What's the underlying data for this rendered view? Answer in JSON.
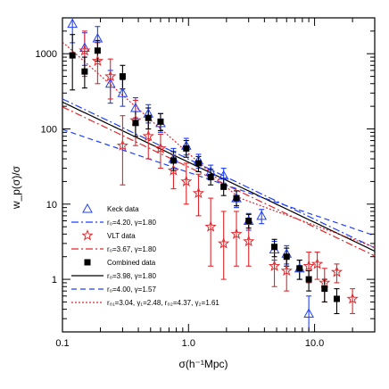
{
  "chart_data": {
    "type": "scatter",
    "title": "",
    "xlabel": "σ(h⁻¹Mpc)",
    "ylabel": "w_p(σ)/σ",
    "xscale": "log",
    "yscale": "log",
    "xlim": [
      0.1,
      30
    ],
    "ylim": [
      0.2,
      3000
    ],
    "xtick_labels": [
      "0.1",
      "1.0",
      "10.0"
    ],
    "ytick_labels": [
      "1",
      "10",
      "100",
      "1000"
    ],
    "legend_position": "bottom-left",
    "grid": false,
    "series": [
      {
        "name": "Keck data",
        "marker": "triangle-open",
        "color": "#1f3fff",
        "points": [
          {
            "x": 0.12,
            "y": 2500,
            "lo": 1400,
            "hi": 3500
          },
          {
            "x": 0.15,
            "y": 1200,
            "lo": 700,
            "hi": 1900
          },
          {
            "x": 0.19,
            "y": 1600,
            "lo": 1100,
            "hi": 2300
          },
          {
            "x": 0.24,
            "y": 400,
            "lo": 220,
            "hi": 600
          },
          {
            "x": 0.3,
            "y": 300,
            "lo": 200,
            "hi": 450
          },
          {
            "x": 0.38,
            "y": 190,
            "lo": 140,
            "hi": 260
          },
          {
            "x": 0.48,
            "y": 160,
            "lo": 120,
            "hi": 210
          },
          {
            "x": 0.6,
            "y": 120,
            "lo": 90,
            "hi": 160
          },
          {
            "x": 0.76,
            "y": 40,
            "lo": 30,
            "hi": 55
          },
          {
            "x": 0.96,
            "y": 60,
            "lo": 45,
            "hi": 75
          },
          {
            "x": 1.2,
            "y": 38,
            "lo": 30,
            "hi": 46
          },
          {
            "x": 1.5,
            "y": 27,
            "lo": 21,
            "hi": 33
          },
          {
            "x": 1.9,
            "y": 24,
            "lo": 19,
            "hi": 30
          },
          {
            "x": 2.4,
            "y": 12,
            "lo": 9,
            "hi": 15
          },
          {
            "x": 3.0,
            "y": 6.0,
            "lo": 4.5,
            "hi": 7.5
          },
          {
            "x": 3.8,
            "y": 7.0,
            "lo": 5.5,
            "hi": 8.5
          },
          {
            "x": 4.8,
            "y": 2.5,
            "lo": 1.8,
            "hi": 3.2
          },
          {
            "x": 6.0,
            "y": 2.2,
            "lo": 1.6,
            "hi": 2.8
          },
          {
            "x": 7.6,
            "y": 1.4,
            "lo": 1.0,
            "hi": 1.8
          },
          {
            "x": 9.0,
            "y": 0.35,
            "lo": 0.2,
            "hi": 0.6
          }
        ]
      },
      {
        "name": "VLT data",
        "marker": "star-open",
        "color": "#e0282d",
        "points": [
          {
            "x": 0.15,
            "y": 1100,
            "lo": 500,
            "hi": 2000
          },
          {
            "x": 0.19,
            "y": 800,
            "lo": 400,
            "hi": 1400
          },
          {
            "x": 0.24,
            "y": 500,
            "lo": 250,
            "hi": 850
          },
          {
            "x": 0.3,
            "y": 60,
            "lo": 18,
            "hi": 150
          },
          {
            "x": 0.38,
            "y": 130,
            "lo": 60,
            "hi": 240
          },
          {
            "x": 0.48,
            "y": 80,
            "lo": 40,
            "hi": 140
          },
          {
            "x": 0.6,
            "y": 55,
            "lo": 30,
            "hi": 85
          },
          {
            "x": 0.76,
            "y": 28,
            "lo": 16,
            "hi": 45
          },
          {
            "x": 0.96,
            "y": 20,
            "lo": 10,
            "hi": 35
          },
          {
            "x": 1.2,
            "y": 14,
            "lo": 7,
            "hi": 25
          },
          {
            "x": 1.5,
            "y": 5.0,
            "lo": 1.5,
            "hi": 12
          },
          {
            "x": 1.9,
            "y": 3.0,
            "lo": 1.0,
            "hi": 8
          },
          {
            "x": 2.4,
            "y": 4.0,
            "lo": 1.5,
            "hi": 8
          },
          {
            "x": 3.0,
            "y": 3.2,
            "lo": 1.5,
            "hi": 5.5
          },
          {
            "x": 4.8,
            "y": 1.5,
            "lo": 0.8,
            "hi": 2.5
          },
          {
            "x": 6.0,
            "y": 1.3,
            "lo": 0.7,
            "hi": 2.0
          },
          {
            "x": 9.0,
            "y": 1.5,
            "lo": 0.9,
            "hi": 2.3
          },
          {
            "x": 10.5,
            "y": 1.6,
            "lo": 1.0,
            "hi": 2.3
          },
          {
            "x": 12.0,
            "y": 0.9,
            "lo": 0.5,
            "hi": 1.4
          },
          {
            "x": 15.0,
            "y": 1.25,
            "lo": 0.9,
            "hi": 1.6
          },
          {
            "x": 20.0,
            "y": 0.55,
            "lo": 0.35,
            "hi": 0.75
          }
        ]
      },
      {
        "name": "Combined data",
        "marker": "square-filled",
        "color": "#000000",
        "points": [
          {
            "x": 0.12,
            "y": 950,
            "lo": 330,
            "hi": 1800
          },
          {
            "x": 0.15,
            "y": 580,
            "lo": 350,
            "hi": 900
          },
          {
            "x": 0.19,
            "y": 1100,
            "lo": 800,
            "hi": 1500
          },
          {
            "x": 0.3,
            "y": 500,
            "lo": 340,
            "hi": 700
          },
          {
            "x": 0.38,
            "y": 120,
            "lo": 80,
            "hi": 170
          },
          {
            "x": 0.48,
            "y": 140,
            "lo": 100,
            "hi": 190
          },
          {
            "x": 0.6,
            "y": 125,
            "lo": 95,
            "hi": 160
          },
          {
            "x": 0.76,
            "y": 38,
            "lo": 28,
            "hi": 50
          },
          {
            "x": 0.96,
            "y": 55,
            "lo": 42,
            "hi": 70
          },
          {
            "x": 1.2,
            "y": 35,
            "lo": 27,
            "hi": 43
          },
          {
            "x": 1.5,
            "y": 23,
            "lo": 18,
            "hi": 29
          },
          {
            "x": 1.9,
            "y": 17,
            "lo": 13,
            "hi": 22
          },
          {
            "x": 2.4,
            "y": 12,
            "lo": 9.5,
            "hi": 15
          },
          {
            "x": 3.0,
            "y": 6.0,
            "lo": 4.8,
            "hi": 7.3
          },
          {
            "x": 4.8,
            "y": 2.7,
            "lo": 2.0,
            "hi": 3.4
          },
          {
            "x": 6.0,
            "y": 2.0,
            "lo": 1.5,
            "hi": 2.6
          },
          {
            "x": 7.6,
            "y": 1.4,
            "lo": 1.0,
            "hi": 1.8
          },
          {
            "x": 9.0,
            "y": 1.0,
            "lo": 0.7,
            "hi": 1.3
          },
          {
            "x": 12.0,
            "y": 0.75,
            "lo": 0.5,
            "hi": 1.0
          },
          {
            "x": 15.0,
            "y": 0.55,
            "lo": 0.35,
            "hi": 0.75
          }
        ]
      }
    ],
    "fits": [
      {
        "name": "r0=4.20, γ=1.80",
        "color": "#1f3fff",
        "dash": "8 3 2 3",
        "r0": 4.2,
        "gamma": 1.8
      },
      {
        "name": "r0=3.67, γ=1.80",
        "color": "#e0282d",
        "dash": "8 3 2 3",
        "r0": 3.67,
        "gamma": 1.8
      },
      {
        "name": "r0=3.98, γ=1.80",
        "color": "#000000",
        "dash": "",
        "r0": 3.98,
        "gamma": 1.8
      },
      {
        "name": "r0=4.00, γ=1.57",
        "color": "#1f3fff",
        "dash": "6 4",
        "r0": 4.0,
        "gamma": 1.57
      },
      {
        "name": "r0=3.04, γ1=2.48, r0,2=4.37, γ2=1.61",
        "color": "#e0282d",
        "dash": "2 2",
        "r0": 3.04,
        "gamma": 2.48,
        "r0_2": 4.37,
        "gamma_2": 1.61,
        "break_sigma": 2.5
      }
    ],
    "legend": [
      {
        "kind": "marker",
        "marker": "triangle-open",
        "color": "#1f3fff",
        "text": "Keck data"
      },
      {
        "kind": "line",
        "color": "#1f3fff",
        "dash": "8 3 2 3",
        "text": "r₀=4.20, γ=1.80"
      },
      {
        "kind": "marker",
        "marker": "star-open",
        "color": "#e0282d",
        "text": "VLT data"
      },
      {
        "kind": "line",
        "color": "#e0282d",
        "dash": "8 3 2 3",
        "text": "r₀=3.67, γ=1.80"
      },
      {
        "kind": "marker",
        "marker": "square-filled",
        "color": "#000000",
        "text": "Combined data"
      },
      {
        "kind": "line",
        "color": "#000000",
        "dash": "",
        "text": "r₀=3.98, γ=1.80"
      },
      {
        "kind": "line",
        "color": "#1f3fff",
        "dash": "6 4",
        "text": "r₀=4.00, γ=1.57"
      },
      {
        "kind": "line",
        "color": "#e0282d",
        "dash": "2 2",
        "text": "r₀₁=3.04, γ₁=2.48, r₀₂=4.37, γ₂=1.61"
      }
    ]
  }
}
